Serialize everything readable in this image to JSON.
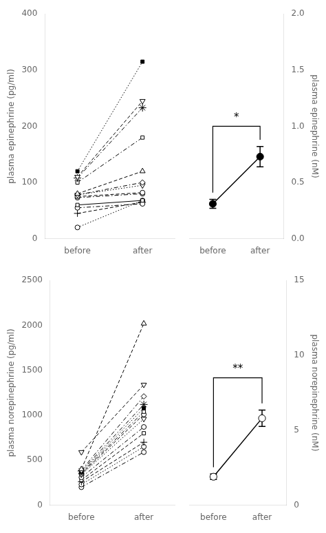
{
  "chart_data": [
    {
      "type": "line",
      "ylabel": "plasma epinephrine (pg/ml)",
      "categories": [
        "before",
        "after"
      ],
      "color": "black",
      "grid": false,
      "ylim": [
        0,
        400
      ],
      "yticks": [
        0,
        100,
        200,
        300,
        400
      ],
      "series": [
        {
          "values": [
            120,
            315
          ],
          "marker": "filled square",
          "line_style": "dotted"
        },
        {
          "values": [
            110,
            245
          ],
          "marker": "triangle_down",
          "line_style": "dashed"
        },
        {
          "values": [
            108,
            233
          ],
          "marker": "star",
          "line_style": "dashdot"
        },
        {
          "values": [
            100,
            180
          ],
          "marker": "square",
          "line_style": "dashdot"
        },
        {
          "values": [
            80,
            120
          ],
          "marker": "triangle_up",
          "line_style": "dashed"
        },
        {
          "values": [
            78,
            100
          ],
          "marker": "diamond",
          "line_style": "dashdot"
        },
        {
          "values": [
            78,
            95
          ],
          "marker": "triangle_down",
          "line_style": "dotted"
        },
        {
          "values": [
            75,
            82
          ],
          "marker": "circle",
          "line_style": "dashed"
        },
        {
          "values": [
            73,
            80
          ],
          "marker": "circle",
          "line_style": "dashdot"
        },
        {
          "values": [
            60,
            68
          ],
          "marker": "square",
          "line_style": "solid"
        },
        {
          "values": [
            55,
            62
          ],
          "marker": "circle",
          "line_style": "dashdot"
        },
        {
          "values": [
            45,
            65
          ],
          "marker": "plus",
          "line_style": "dashed"
        },
        {
          "values": [
            20,
            68
          ],
          "marker": "circle",
          "line_style": "dotted"
        }
      ]
    },
    {
      "type": "line",
      "ylabel": "plasma epinephrine (nM)",
      "categories": [
        "before",
        "after"
      ],
      "color": "black",
      "grid": false,
      "ylim": [
        0,
        2.0
      ],
      "yticks": [
        {
          "value": 0,
          "label": "0.0"
        },
        0.5,
        {
          "value": 1.0,
          "label": "1.0"
        },
        1.5,
        {
          "value": 2.0,
          "label": "2.0"
        }
      ],
      "values": [
        0.31,
        0.73
      ],
      "errors": [
        0.04,
        0.09
      ],
      "marker": "filled circle",
      "line_style": "solid",
      "annotations": [
        {
          "text": "*",
          "y": 1.0
        }
      ]
    },
    {
      "type": "line",
      "ylabel": "plasma norepinephrine (pg/ml)",
      "categories": [
        "before",
        "after"
      ],
      "color": "black",
      "grid": false,
      "ylim": [
        0,
        2500
      ],
      "yticks": [
        0,
        500,
        1000,
        1500,
        2000,
        2500
      ],
      "series": [
        {
          "values": [
            400,
            2020
          ],
          "marker": "triangle_up",
          "line_style": "dashed"
        },
        {
          "values": [
            590,
            1340
          ],
          "marker": "triangle_down",
          "line_style": "dashed"
        },
        {
          "values": [
            390,
            1210
          ],
          "marker": "diamond",
          "line_style": "dashdot"
        },
        {
          "values": [
            380,
            1120
          ],
          "marker": "star",
          "line_style": "dashdot"
        },
        {
          "values": [
            370,
            1080
          ],
          "marker": "filled square",
          "line_style": "dotted"
        },
        {
          "values": [
            360,
            1040
          ],
          "marker": "square",
          "line_style": "dashdot"
        },
        {
          "values": [
            350,
            1010
          ],
          "marker": "circle",
          "line_style": "dashed"
        },
        {
          "values": [
            340,
            960
          ],
          "marker": "triangle_down",
          "line_style": "dotted"
        },
        {
          "values": [
            310,
            870
          ],
          "marker": "circle",
          "line_style": "dashdot"
        },
        {
          "values": [
            280,
            800
          ],
          "marker": "square",
          "line_style": "dashed"
        },
        {
          "values": [
            260,
            700
          ],
          "marker": "plus",
          "line_style": "dashed"
        },
        {
          "values": [
            230,
            650
          ],
          "marker": "circle",
          "line_style": "dotted"
        },
        {
          "values": [
            200,
            590
          ],
          "marker": "circle",
          "line_style": "dashdot"
        }
      ]
    },
    {
      "type": "line",
      "ylabel": "plasma norepinephrine (nM)",
      "categories": [
        "before",
        "after"
      ],
      "color": "black",
      "grid": false,
      "ylim": [
        0,
        15
      ],
      "yticks": [
        0,
        5,
        10,
        15
      ],
      "values": [
        1.9,
        5.8
      ],
      "errors": [
        0.18,
        0.55
      ],
      "marker": "circle",
      "line_style": "solid",
      "annotations": [
        {
          "text": "**",
          "y": 8.5
        }
      ]
    }
  ]
}
